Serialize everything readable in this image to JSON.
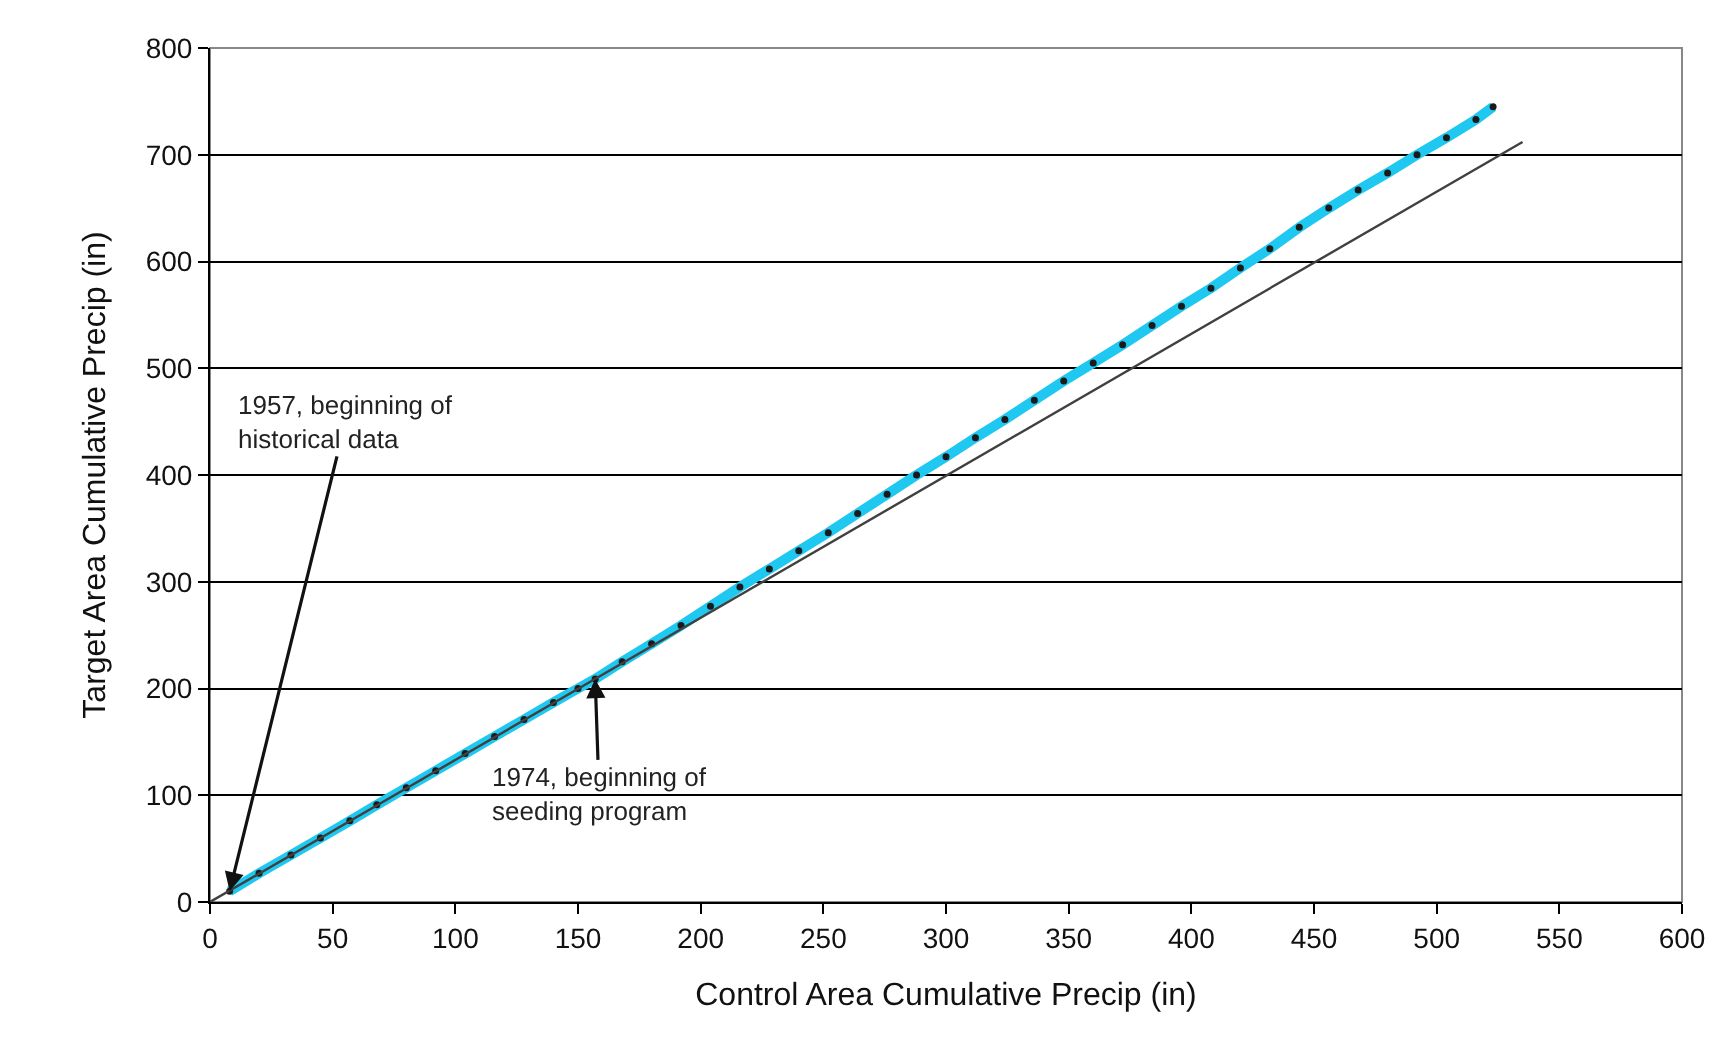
{
  "chart_data": {
    "type": "line",
    "xlabel": "Control Area Cumulative Precip (in)",
    "ylabel": "Target Area Cumulative Precip (in)",
    "xlim": [
      0,
      600
    ],
    "xticks": [
      0,
      50,
      100,
      150,
      200,
      250,
      300,
      350,
      400,
      450,
      500,
      550,
      600
    ],
    "ylim": [
      0,
      800
    ],
    "yticks": [
      0,
      100,
      200,
      300,
      400,
      500,
      600,
      700,
      800
    ],
    "grid": "y",
    "series": [
      {
        "color": "#1ec8f0",
        "marker": "circle",
        "x": [
          8,
          20,
          33,
          45,
          57,
          68,
          80,
          92,
          104,
          116,
          128,
          140,
          150,
          157,
          168,
          180,
          192,
          204,
          216,
          228,
          240,
          252,
          264,
          276,
          288,
          300,
          312,
          324,
          336,
          348,
          360,
          372,
          384,
          396,
          408,
          420,
          432,
          444,
          456,
          468,
          480,
          492,
          504,
          516,
          523
        ],
        "values": [
          10,
          27,
          44,
          60,
          76,
          91,
          107,
          123,
          139,
          155,
          171,
          187,
          200,
          209,
          225,
          242,
          259,
          277,
          295,
          312,
          329,
          346,
          364,
          382,
          400,
          417,
          435,
          452,
          470,
          488,
          505,
          522,
          540,
          558,
          575,
          594,
          612,
          632,
          650,
          667,
          683,
          700,
          716,
          733,
          745
        ]
      },
      {
        "color": "#404040",
        "marker": "none",
        "x": [
          0,
          535
        ],
        "values": [
          0,
          712
        ]
      }
    ],
    "annotations": [
      {
        "text": "1957, beginning of\nhistorical data",
        "x": 8,
        "y": 10
      },
      {
        "text": "1974, beginning of\nseeding program",
        "x": 157,
        "y": 209
      }
    ]
  }
}
